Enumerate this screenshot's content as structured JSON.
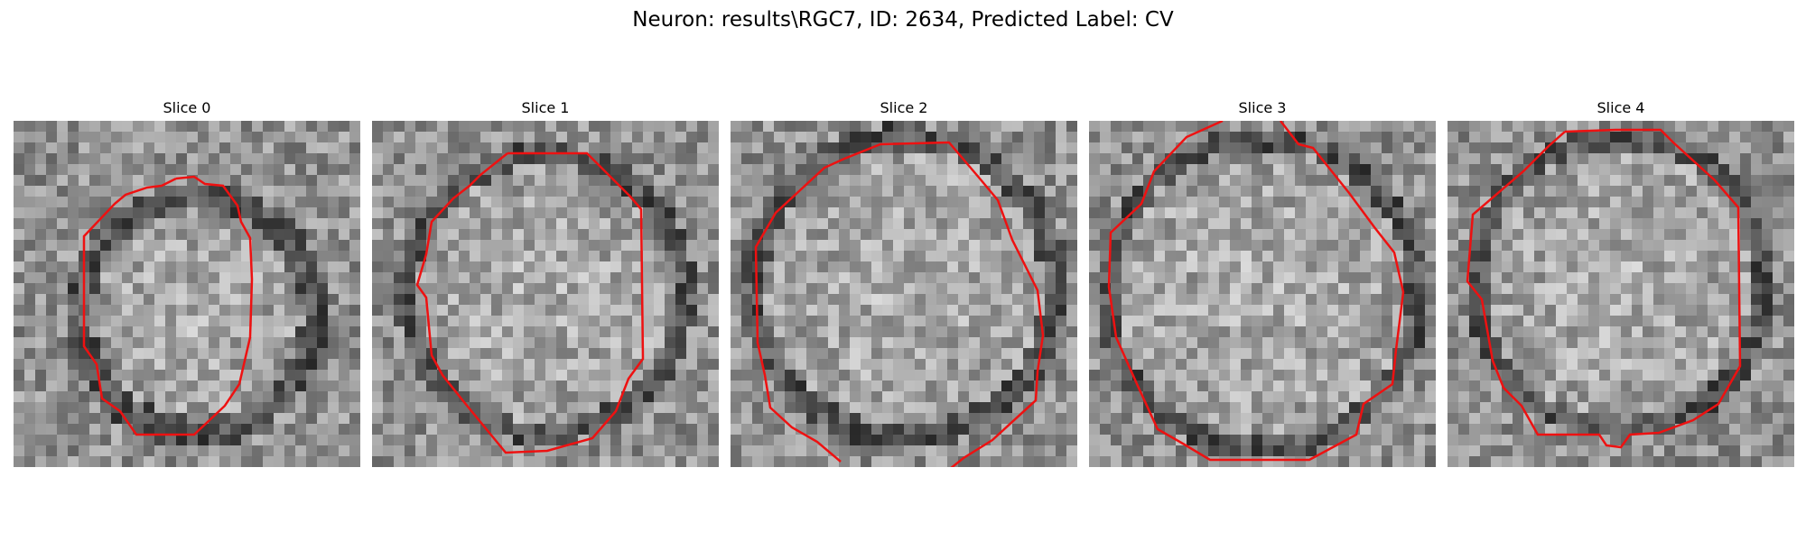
{
  "figure": {
    "title": "Neuron: results\\RGC7, ID: 2634, Predicted Label: CV"
  },
  "panels": [
    {
      "title": "Slice 0"
    },
    {
      "title": "Slice 1"
    },
    {
      "title": "Slice 2"
    },
    {
      "title": "Slice 3"
    },
    {
      "title": "Slice 4"
    }
  ],
  "colors": {
    "contour": "#ee1111",
    "background": "#ffffff"
  }
}
